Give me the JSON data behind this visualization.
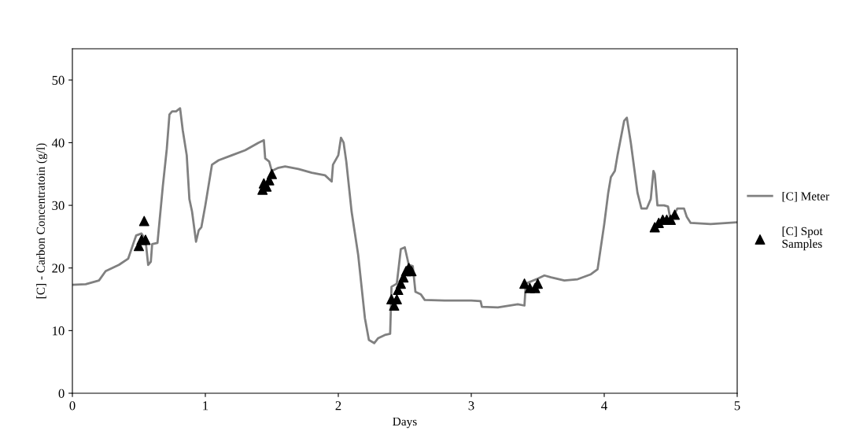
{
  "chart_data": {
    "type": "line",
    "xlabel": "Days",
    "ylabel": "[C] - Carbon Concentratoin (g/l)",
    "xlim": [
      0,
      5
    ],
    "ylim": [
      0,
      55
    ],
    "xticks": [
      0,
      1,
      2,
      3,
      4,
      5
    ],
    "yticks": [
      0,
      10,
      20,
      30,
      40,
      50
    ],
    "grid": false,
    "legend": "right",
    "series": [
      {
        "name": "[C] Meter",
        "color": "#808080",
        "marker": "none",
        "line_style": "solid",
        "x": [
          0,
          0.1,
          0.2,
          0.25,
          0.35,
          0.42,
          0.46,
          0.48,
          0.52,
          0.55,
          0.57,
          0.59,
          0.6,
          0.64,
          0.68,
          0.71,
          0.73,
          0.75,
          0.78,
          0.81,
          0.83,
          0.86,
          0.88,
          0.9,
          0.93,
          0.95,
          0.97,
          1.0,
          1.05,
          1.1,
          1.2,
          1.3,
          1.4,
          1.44,
          1.45,
          1.48,
          1.5,
          1.55,
          1.6,
          1.7,
          1.8,
          1.9,
          1.95,
          1.96,
          2.0,
          2.02,
          2.04,
          2.06,
          2.1,
          2.15,
          2.18,
          2.2,
          2.23,
          2.27,
          2.3,
          2.35,
          2.39,
          2.4,
          2.44,
          2.47,
          2.5,
          2.53,
          2.56,
          2.58,
          2.62,
          2.65,
          2.8,
          3.0,
          3.07,
          3.08,
          3.2,
          3.35,
          3.4,
          3.41,
          3.5,
          3.55,
          3.6,
          3.7,
          3.8,
          3.9,
          3.95,
          4.0,
          4.03,
          4.05,
          4.08,
          4.1,
          4.15,
          4.17,
          4.2,
          4.25,
          4.28,
          4.32,
          4.35,
          4.37,
          4.38,
          4.4,
          4.45,
          4.48,
          4.5,
          4.55,
          4.6,
          4.62,
          4.65,
          4.8,
          5.0
        ],
        "values": [
          17.3,
          17.4,
          18,
          19.5,
          20.5,
          21.5,
          24,
          25.2,
          25.5,
          24.5,
          20.5,
          21,
          23.8,
          24,
          33,
          39,
          44.5,
          45,
          45,
          45.5,
          42,
          38,
          31,
          29,
          24.2,
          26,
          26.5,
          30,
          36.5,
          37.2,
          38,
          38.8,
          40,
          40.4,
          37.5,
          37,
          35.5,
          36,
          36.2,
          35.8,
          35.2,
          34.8,
          33.8,
          36.5,
          38,
          40.8,
          40,
          37,
          29,
          22,
          16,
          12,
          8.5,
          8,
          8.8,
          9.3,
          9.5,
          17,
          17.5,
          23,
          23.3,
          20.5,
          20.3,
          16.2,
          15.8,
          14.9,
          14.8,
          14.8,
          14.7,
          13.8,
          13.7,
          14.2,
          14,
          17.5,
          18.3,
          18.8,
          18.5,
          18,
          18.2,
          19,
          19.8,
          27,
          32,
          34.5,
          35.5,
          38,
          43.5,
          44,
          40,
          32,
          29.5,
          29.5,
          31,
          35.5,
          35,
          30,
          30,
          29.8,
          27.5,
          29.5,
          29.5,
          28.2,
          27.2,
          27,
          27.3
        ]
      },
      {
        "name": "[C] Spot\nSamples",
        "type": "scatter",
        "color": "#000000",
        "marker": "triangle",
        "x": [
          0.5,
          0.52,
          0.54,
          0.55,
          1.43,
          1.44,
          1.46,
          1.48,
          1.5,
          2.4,
          2.42,
          2.44,
          2.45,
          2.47,
          2.49,
          2.51,
          2.53,
          2.55,
          3.4,
          3.44,
          3.48,
          3.5,
          4.38,
          4.41,
          4.44,
          4.47,
          4.5,
          4.53
        ],
        "values": [
          23.5,
          24.5,
          27.5,
          24.5,
          32.5,
          33.5,
          33,
          34,
          35,
          15,
          14,
          15,
          16.5,
          17.5,
          18.5,
          19.5,
          20,
          19.5,
          17.5,
          16.8,
          16.8,
          17.5,
          26.5,
          27.2,
          27.7,
          27.7,
          27.7,
          28.5
        ]
      }
    ]
  }
}
